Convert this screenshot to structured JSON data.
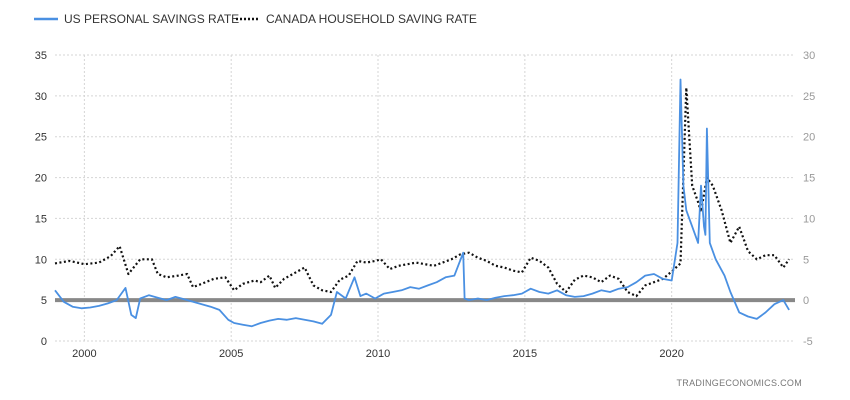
{
  "legend": [
    {
      "label": "US PERSONAL SAVINGS RATE",
      "color": "#4a90e2",
      "style": "solid"
    },
    {
      "label": "CANADA HOUSEHOLD SAVING RATE",
      "color": "#111111",
      "style": "dotted"
    }
  ],
  "attribution": "TRADINGECONOMICS.COM",
  "chart_data": {
    "type": "line",
    "x_range": [
      1999.0,
      2024.2
    ],
    "x_ticks": [
      "2000",
      "2005",
      "2010",
      "2015",
      "2020"
    ],
    "left_axis": {
      "range": [
        0,
        35
      ],
      "ticks": [
        "0",
        "5",
        "10",
        "15",
        "20",
        "25",
        "30",
        "35"
      ]
    },
    "right_axis": {
      "range": [
        -5,
        30
      ],
      "ticks": [
        "-5",
        "0",
        "5",
        "10",
        "15",
        "20",
        "25",
        "30"
      ]
    },
    "grid": true,
    "legend_position": "top-left",
    "zero_line_right_axis": 0,
    "series": [
      {
        "name": "US PERSONAL SAVINGS RATE",
        "axis": "left",
        "color": "#4a90e2",
        "x": [
          1999.0,
          1999.3,
          1999.6,
          1999.9,
          2000.2,
          2000.5,
          2000.8,
          2001.1,
          2001.4,
          2001.6,
          2001.75,
          2001.9,
          2002.2,
          2002.5,
          2002.8,
          2003.1,
          2003.4,
          2003.7,
          2004.0,
          2004.3,
          2004.6,
          2004.9,
          2005.1,
          2005.4,
          2005.7,
          2006.0,
          2006.3,
          2006.6,
          2006.9,
          2007.2,
          2007.5,
          2007.8,
          2008.1,
          2008.4,
          2008.6,
          2008.9,
          2009.2,
          2009.4,
          2009.6,
          2009.9,
          2010.2,
          2010.5,
          2010.8,
          2011.1,
          2011.4,
          2011.7,
          2012.0,
          2012.3,
          2012.6,
          2012.9,
          2012.95,
          2013.1,
          2013.4,
          2013.7,
          2014.0,
          2014.3,
          2014.6,
          2014.9,
          2015.2,
          2015.5,
          2015.8,
          2016.1,
          2016.4,
          2016.7,
          2017.0,
          2017.3,
          2017.6,
          2017.9,
          2018.2,
          2018.5,
          2018.8,
          2019.1,
          2019.4,
          2019.7,
          2020.0,
          2020.2,
          2020.3,
          2020.4,
          2020.5,
          2020.7,
          2020.9,
          2021.0,
          2021.1,
          2021.15,
          2021.2,
          2021.3,
          2021.5,
          2021.8,
          2022.0,
          2022.3,
          2022.6,
          2022.9,
          2023.2,
          2023.5,
          2023.8,
          2024.0
        ],
        "values": [
          6.2,
          4.8,
          4.2,
          4.0,
          4.1,
          4.3,
          4.6,
          5.0,
          6.5,
          3.2,
          2.8,
          5.2,
          5.6,
          5.3,
          5.0,
          5.4,
          5.1,
          4.8,
          4.5,
          4.2,
          3.8,
          2.6,
          2.2,
          2.0,
          1.8,
          2.2,
          2.5,
          2.7,
          2.6,
          2.8,
          2.6,
          2.4,
          2.1,
          3.2,
          6.0,
          5.2,
          7.8,
          5.5,
          5.8,
          5.2,
          5.8,
          6.0,
          6.2,
          6.6,
          6.4,
          6.8,
          7.2,
          7.8,
          8.0,
          10.8,
          5.2,
          5.0,
          5.2,
          5.0,
          5.3,
          5.5,
          5.6,
          5.8,
          6.4,
          6.0,
          5.8,
          6.2,
          5.6,
          5.4,
          5.5,
          5.8,
          6.2,
          6.0,
          6.4,
          6.6,
          7.2,
          8.0,
          8.2,
          7.6,
          7.4,
          12.0,
          32.0,
          19.0,
          16.0,
          14.0,
          12.0,
          19.0,
          14.0,
          13.0,
          26.0,
          12.0,
          10.0,
          8.0,
          6.0,
          3.5,
          3.0,
          2.7,
          3.5,
          4.5,
          5.0,
          3.8
        ]
      },
      {
        "name": "CANADA HOUSEHOLD SAVING RATE",
        "axis": "right",
        "color": "#111111",
        "x": [
          1999.0,
          1999.5,
          2000.0,
          2000.5,
          2000.9,
          2001.2,
          2001.5,
          2001.9,
          2002.3,
          2002.5,
          2002.8,
          2003.2,
          2003.5,
          2003.7,
          2004.0,
          2004.4,
          2004.8,
          2005.1,
          2005.4,
          2005.8,
          2006.0,
          2006.3,
          2006.5,
          2006.8,
          2007.1,
          2007.5,
          2007.8,
          2008.1,
          2008.4,
          2008.7,
          2009.0,
          2009.3,
          2009.6,
          2009.9,
          2010.1,
          2010.4,
          2010.7,
          2011.0,
          2011.3,
          2011.6,
          2011.9,
          2012.2,
          2012.5,
          2012.8,
          2013.1,
          2013.4,
          2013.7,
          2014.0,
          2014.3,
          2014.6,
          2014.9,
          2015.2,
          2015.5,
          2015.8,
          2016.1,
          2016.4,
          2016.7,
          2017.0,
          2017.3,
          2017.6,
          2017.9,
          2018.2,
          2018.5,
          2018.8,
          2019.1,
          2019.4,
          2019.7,
          2020.0,
          2020.3,
          2020.5,
          2020.7,
          2020.9,
          2021.0,
          2021.2,
          2021.4,
          2021.7,
          2022.0,
          2022.3,
          2022.6,
          2022.9,
          2023.2,
          2023.5,
          2023.8,
          2024.0
        ],
        "values": [
          4.5,
          4.8,
          4.4,
          4.6,
          5.4,
          6.6,
          3.2,
          5.0,
          5.0,
          3.2,
          2.8,
          3.0,
          3.2,
          1.6,
          2.0,
          2.6,
          2.8,
          1.2,
          2.0,
          2.4,
          2.2,
          3.0,
          1.5,
          2.6,
          3.2,
          4.0,
          1.8,
          1.2,
          1.0,
          2.5,
          3.0,
          4.8,
          4.6,
          4.8,
          5.0,
          3.8,
          4.2,
          4.4,
          4.6,
          4.4,
          4.2,
          4.6,
          5.0,
          5.6,
          5.8,
          5.2,
          4.8,
          4.2,
          4.0,
          3.6,
          3.4,
          5.2,
          4.8,
          4.0,
          2.0,
          1.0,
          2.5,
          3.0,
          2.8,
          2.2,
          3.0,
          2.6,
          1.0,
          0.5,
          1.8,
          2.2,
          2.6,
          3.5,
          4.5,
          26.0,
          14.0,
          12.0,
          10.8,
          15.0,
          14.0,
          11.0,
          7.0,
          9.0,
          6.0,
          5.0,
          5.5,
          5.5,
          4.0,
          5.0
        ]
      }
    ]
  }
}
